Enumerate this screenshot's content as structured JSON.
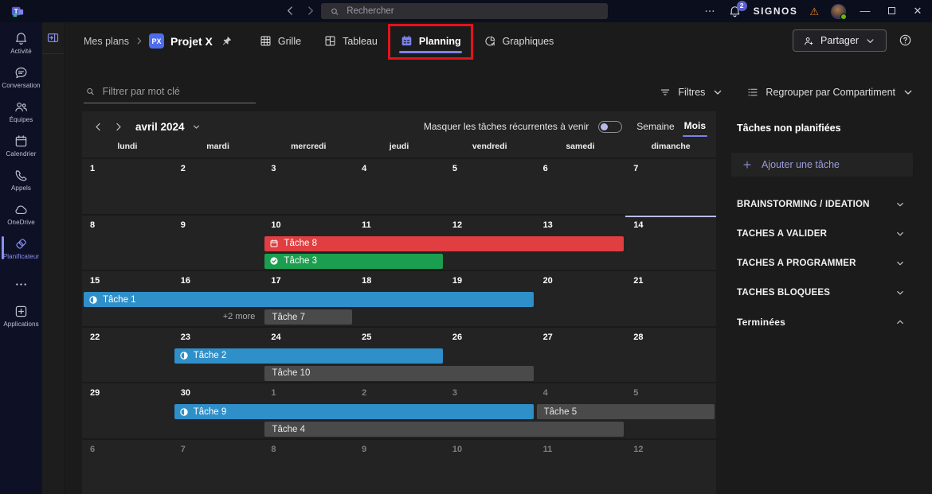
{
  "topbar": {
    "search_placeholder": "Rechercher",
    "org_name": "SIGNOS",
    "notification_count": "2"
  },
  "sidebar": {
    "items": [
      {
        "id": "activite",
        "label": "Activité",
        "icon": "bell",
        "active": false
      },
      {
        "id": "conversation",
        "label": "Conversation",
        "icon": "chat",
        "active": false
      },
      {
        "id": "equipes",
        "label": "Équipes",
        "icon": "people",
        "active": false
      },
      {
        "id": "calendrier",
        "label": "Calendrier",
        "icon": "calendar",
        "active": false
      },
      {
        "id": "appels",
        "label": "Appels",
        "icon": "phone",
        "active": false
      },
      {
        "id": "onedrive",
        "label": "OneDrive",
        "icon": "cloud",
        "active": false
      },
      {
        "id": "planificateur",
        "label": "Planificateur",
        "icon": "planner",
        "active": true
      }
    ],
    "apps_label": "Applications"
  },
  "header": {
    "breadcrumb": "Mes plans",
    "plan_badge": "PX",
    "plan_title": "Projet X",
    "tabs": [
      {
        "id": "grille",
        "label": "Grille",
        "icon": "grid",
        "active": false,
        "highlighted": false
      },
      {
        "id": "tableau",
        "label": "Tableau",
        "icon": "board",
        "active": false,
        "highlighted": false
      },
      {
        "id": "planning",
        "label": "Planning",
        "icon": "planning",
        "active": true,
        "highlighted": true
      },
      {
        "id": "graphiques",
        "label": "Graphiques",
        "icon": "chartpie",
        "active": false,
        "highlighted": false
      }
    ],
    "share_label": "Partager"
  },
  "filter_bar": {
    "search_placeholder": "Filtrer par mot clé",
    "filters_label": "Filtres",
    "group_label": "Regrouper par Compartiment"
  },
  "calendar": {
    "month_label": "avril 2024",
    "toggle_label": "Masquer les tâches récurrentes à venir",
    "toggle_state": "off",
    "week_view_label": "Semaine",
    "month_view_label": "Mois",
    "active_view": "Mois",
    "day_headers": [
      "lundi",
      "mardi",
      "mercredi",
      "jeudi",
      "vendredi",
      "samedi",
      "dimanche"
    ],
    "weeks": [
      {
        "days": [
          {
            "n": "1"
          },
          {
            "n": "2"
          },
          {
            "n": "3"
          },
          {
            "n": "4"
          },
          {
            "n": "5"
          },
          {
            "n": "6"
          },
          {
            "n": "7"
          }
        ],
        "tasks": []
      },
      {
        "days": [
          {
            "n": "8"
          },
          {
            "n": "9"
          },
          {
            "n": "10"
          },
          {
            "n": "11"
          },
          {
            "n": "12"
          },
          {
            "n": "13"
          },
          {
            "n": "14",
            "today": true
          }
        ],
        "tasks": [
          {
            "label": "Tâche 8",
            "color": "red",
            "icon": "taskcal",
            "col": 2,
            "span": 4,
            "lane": 0
          },
          {
            "label": "Tâche 3",
            "color": "green",
            "icon": "taskcheck",
            "col": 2,
            "span": 2,
            "lane": 1
          }
        ]
      },
      {
        "days": [
          {
            "n": "15"
          },
          {
            "n": "16"
          },
          {
            "n": "17"
          },
          {
            "n": "18"
          },
          {
            "n": "19"
          },
          {
            "n": "20"
          },
          {
            "n": "21"
          }
        ],
        "tasks": [
          {
            "label": "Tâche 1",
            "color": "blue",
            "icon": "taskprogress",
            "col": 0,
            "span": 5,
            "lane": 0
          },
          {
            "label": "Tâche 7",
            "color": "gray",
            "icon": "",
            "col": 2,
            "span": 1,
            "lane": 1
          }
        ],
        "more": {
          "label": "+2 more",
          "col": 1,
          "lane": 1
        }
      },
      {
        "days": [
          {
            "n": "22"
          },
          {
            "n": "23"
          },
          {
            "n": "24"
          },
          {
            "n": "25"
          },
          {
            "n": "26"
          },
          {
            "n": "27"
          },
          {
            "n": "28"
          }
        ],
        "tasks": [
          {
            "label": "Tâche 2",
            "color": "blue",
            "icon": "taskprogress",
            "col": 1,
            "span": 3,
            "lane": 0
          },
          {
            "label": "Tâche 10",
            "color": "gray",
            "icon": "",
            "col": 2,
            "span": 3,
            "lane": 1
          }
        ]
      },
      {
        "days": [
          {
            "n": "29"
          },
          {
            "n": "30"
          },
          {
            "n": "1",
            "out": true
          },
          {
            "n": "2",
            "out": true
          },
          {
            "n": "3",
            "out": true
          },
          {
            "n": "4",
            "out": true
          },
          {
            "n": "5",
            "out": true
          }
        ],
        "tasks": [
          {
            "label": "Tâche 9",
            "color": "blue",
            "icon": "taskprogress",
            "col": 1,
            "span": 4,
            "lane": 0
          },
          {
            "label": "Tâche 5",
            "color": "gray",
            "icon": "",
            "col": 5,
            "span": 2,
            "lane": 0
          },
          {
            "label": "Tâche 4",
            "color": "gray",
            "icon": "",
            "col": 2,
            "span": 4,
            "lane": 1
          }
        ]
      },
      {
        "days": [
          {
            "n": "6",
            "out": true
          },
          {
            "n": "7",
            "out": true
          },
          {
            "n": "8",
            "out": true
          },
          {
            "n": "9",
            "out": true
          },
          {
            "n": "10",
            "out": true
          },
          {
            "n": "11",
            "out": true
          },
          {
            "n": "12",
            "out": true
          }
        ],
        "tasks": []
      }
    ]
  },
  "right_panel": {
    "title": "Tâches non planifiées",
    "add_task_label": "Ajouter une tâche",
    "buckets": [
      {
        "label": "BRAINSTORMING / IDEATION",
        "expanded": false
      },
      {
        "label": "TACHES A VALIDER",
        "expanded": false
      },
      {
        "label": "TACHES A PROGRAMMER",
        "expanded": false
      },
      {
        "label": "TACHES BLOQUEES",
        "expanded": false
      },
      {
        "label": "Terminées",
        "expanded": true
      }
    ]
  },
  "colors": {
    "accent_purple": "#7b82e8",
    "annotation_red": "#e3131b",
    "task_red": "#e03e41",
    "task_green": "#1b9e4f",
    "task_blue": "#2f8fc9",
    "task_gray": "#4a4a4a",
    "today_indicator": "#b9bce6",
    "plan_badge_blue": "#4f6bed"
  }
}
